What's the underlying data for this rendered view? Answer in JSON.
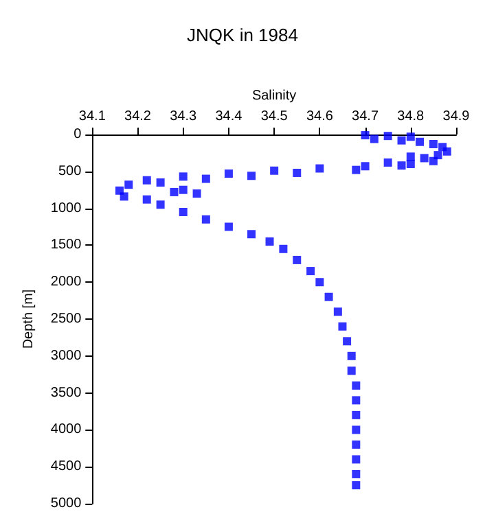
{
  "chart_data": {
    "type": "scatter",
    "title": "JNQK in 1984",
    "xlabel": "Salinity",
    "ylabel": "Depth [m]",
    "marker": "square",
    "grid": false,
    "xlim": [
      34.1,
      34.9
    ],
    "xticks": [
      34.1,
      34.2,
      34.3,
      34.4,
      34.5,
      34.6,
      34.7,
      34.8,
      34.9
    ],
    "ylim": [
      5000,
      0
    ],
    "yticks": [
      0,
      500,
      1000,
      1500,
      2000,
      2500,
      3000,
      3500,
      4000,
      4500,
      5000
    ],
    "series": [
      {
        "color": "#0000ff",
        "x": [
          34.7,
          34.75,
          34.8,
          34.72,
          34.78,
          34.82,
          34.85,
          34.87,
          34.88,
          34.86,
          34.83,
          34.85,
          34.8,
          34.7,
          34.6,
          34.5,
          34.4,
          34.3,
          34.22,
          34.18,
          34.16,
          34.17,
          34.8,
          34.75,
          34.78,
          34.68,
          34.55,
          34.45,
          34.35,
          34.25,
          34.3,
          34.33,
          34.28,
          34.22,
          34.25,
          34.3,
          34.35,
          34.4,
          34.45,
          34.49,
          34.52,
          34.55,
          34.58,
          34.6,
          34.62,
          34.64,
          34.65,
          34.66,
          34.67,
          34.67,
          34.68,
          34.68,
          34.68,
          34.68,
          34.68,
          34.68,
          34.68,
          34.68
        ],
        "values": [
          10,
          20,
          30,
          60,
          80,
          100,
          130,
          170,
          230,
          280,
          320,
          360,
          400,
          430,
          460,
          490,
          530,
          570,
          620,
          680,
          760,
          840,
          300,
          380,
          420,
          480,
          520,
          560,
          600,
          650,
          750,
          800,
          780,
          880,
          950,
          1050,
          1150,
          1250,
          1350,
          1450,
          1550,
          1700,
          1850,
          2000,
          2200,
          2400,
          2600,
          2800,
          3000,
          3200,
          3400,
          3600,
          3800,
          4000,
          4200,
          4400,
          4600,
          4750
        ]
      }
    ]
  }
}
